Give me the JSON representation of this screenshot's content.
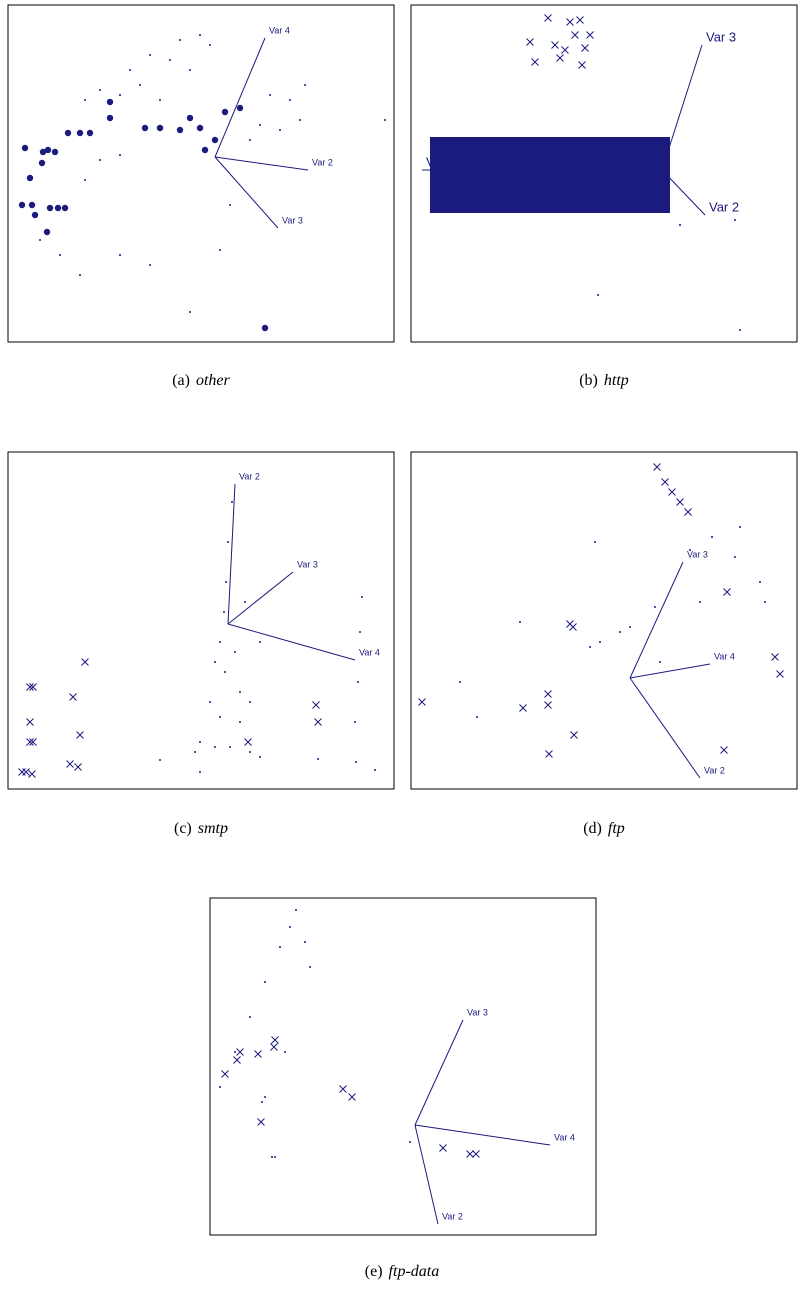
{
  "chart_data": [
    {
      "type": "scatter",
      "caption_label": "(a)",
      "caption_name": "other",
      "color": "#1b1b7e",
      "xlim": [
        0,
        386
      ],
      "ylim": [
        0,
        337
      ],
      "series": [
        {
          "marker": "large-dot",
          "x": [
            17,
            35,
            40,
            47,
            34,
            22,
            14,
            24,
            42,
            50,
            57,
            27,
            39,
            60,
            72,
            82,
            102,
            137,
            152,
            172,
            192,
            207,
            197,
            217,
            232,
            257,
            102,
            182
          ],
          "y": [
            194,
            190,
            192,
            190,
            179,
            164,
            137,
            137,
            134,
            134,
            134,
            127,
            110,
            209,
            209,
            209,
            224,
            214,
            214,
            212,
            214,
            202,
            192,
            230,
            234,
            14,
            240,
            224
          ]
        },
        {
          "marker": "dot",
          "x": [
            172,
            192,
            202,
            162,
            182,
            142,
            122,
            92,
            77,
            112,
            132,
            152,
            262,
            282,
            292,
            252,
            272,
            297,
            242,
            377,
            32,
            52,
            72,
            112,
            142,
            92,
            112,
            77,
            182,
            212,
            222
          ],
          "y": [
            302,
            307,
            297,
            282,
            272,
            287,
            272,
            252,
            242,
            247,
            257,
            242,
            247,
            242,
            222,
            217,
            212,
            257,
            202,
            222,
            102,
            87,
            67,
            87,
            77,
            182,
            187,
            162,
            30,
            92,
            137
          ]
        }
      ],
      "vectors": [
        {
          "label": "Var 4",
          "x": [
            207,
            257
          ],
          "y": [
            185,
            304
          ]
        },
        {
          "label": "Var 2",
          "x": [
            207,
            300
          ],
          "y": [
            185,
            172
          ]
        },
        {
          "label": "Var 3",
          "x": [
            207,
            270
          ],
          "y": [
            185,
            114
          ]
        }
      ]
    },
    {
      "type": "scatter",
      "caption_label": "(b)",
      "caption_name": "http",
      "color": "#1b1b7e",
      "xlim": [
        0,
        386
      ],
      "ylim": [
        0,
        337
      ],
      "series": [
        {
          "marker": "cross",
          "x": [
            137,
            159,
            169,
            119,
            144,
            164,
            179,
            154,
            174,
            124,
            149,
            171
          ],
          "y": [
            324,
            320,
            322,
            300,
            297,
            307,
            307,
            292,
            294,
            280,
            284,
            277
          ]
        },
        {
          "marker": "dense",
          "x": [
            29,
            49,
            69,
            89,
            109,
            129,
            149,
            169,
            189,
            209,
            229,
            249,
            29,
            49,
            69,
            89,
            109,
            129,
            149,
            169,
            189,
            209,
            229,
            249,
            29,
            49,
            69,
            89,
            109,
            129,
            149,
            169,
            189,
            209,
            229,
            249,
            29,
            49,
            69,
            89,
            109,
            129,
            149,
            169,
            189,
            209,
            229,
            249,
            29,
            49,
            69,
            89,
            109,
            129,
            149,
            169,
            189,
            209,
            229,
            249
          ],
          "y": [
            197,
            197,
            197,
            197,
            197,
            197,
            197,
            197,
            197,
            197,
            197,
            197,
            182,
            182,
            182,
            182,
            182,
            182,
            182,
            182,
            182,
            182,
            182,
            182,
            167,
            167,
            167,
            167,
            167,
            167,
            167,
            167,
            167,
            167,
            167,
            167,
            152,
            152,
            152,
            152,
            152,
            152,
            152,
            152,
            152,
            152,
            152,
            152,
            137,
            137,
            137,
            137,
            137,
            137,
            137,
            137,
            137,
            137,
            137,
            137
          ]
        },
        {
          "marker": "dot",
          "x": [
            187,
            329,
            324,
            269
          ],
          "y": [
            47,
            12,
            122,
            117
          ]
        }
      ],
      "vectors": [
        {
          "label": "Var 3",
          "x": [
            251,
            291
          ],
          "y": [
            172,
            297
          ]
        },
        {
          "label": "Var 2",
          "x": [
            251,
            294
          ],
          "y": [
            172,
            127
          ]
        },
        {
          "label": "Var 4",
          "x": [
            251,
            11
          ],
          "y": [
            172,
            172
          ]
        }
      ]
    },
    {
      "type": "scatter",
      "caption_label": "(c)",
      "caption_name": "smtp",
      "color": "#1b1b7e",
      "xlim": [
        0,
        386
      ],
      "ylim": [
        0,
        337
      ],
      "series": [
        {
          "marker": "cross",
          "x": [
            22,
            25,
            77,
            65,
            22,
            72,
            22,
            25,
            62,
            70,
            14,
            18,
            24,
            308,
            310,
            240
          ],
          "y": [
            102,
            102,
            127,
            92,
            67,
            54,
            47,
            47,
            25,
            22,
            17,
            17,
            15,
            84,
            67,
            47
          ]
        },
        {
          "marker": "dot",
          "x": [
            224,
            220,
            218,
            216,
            212,
            207,
            217,
            227,
            232,
            202,
            212,
            232,
            192,
            207,
            222,
            242,
            187,
            252,
            237,
            252,
            354,
            352,
            350,
            347,
            348,
            367,
            152,
            192,
            310,
            242
          ],
          "y": [
            287,
            247,
            207,
            177,
            147,
            127,
            117,
            137,
            97,
            87,
            72,
            67,
            47,
            42,
            42,
            37,
            37,
            32,
            187,
            147,
            192,
            157,
            107,
            67,
            27,
            19,
            29,
            17,
            30,
            87
          ]
        }
      ],
      "vectors": [
        {
          "label": "Var 2",
          "x": [
            220,
            227
          ],
          "y": [
            165,
            305
          ]
        },
        {
          "label": "Var 3",
          "x": [
            220,
            285
          ],
          "y": [
            165,
            217
          ]
        },
        {
          "label": "Var 4",
          "x": [
            220,
            347
          ],
          "y": [
            165,
            129
          ]
        }
      ]
    },
    {
      "type": "scatter",
      "caption_label": "(d)",
      "caption_name": "ftp",
      "color": "#1b1b7e",
      "xlim": [
        0,
        386
      ],
      "ylim": [
        0,
        337
      ],
      "series": [
        {
          "marker": "cross",
          "x": [
            246,
            254,
            261,
            269,
            277,
            159,
            162,
            364,
            369,
            313,
            11,
            112,
            137,
            137,
            163,
            138,
            316
          ],
          "y": [
            322,
            307,
            297,
            287,
            277,
            165,
            162,
            132,
            115,
            39,
            87,
            81,
            95,
            84,
            54,
            35,
            197
          ]
        },
        {
          "marker": "dot",
          "x": [
            329,
            301,
            279,
            219,
            209,
            189,
            179,
            244,
            324,
            354,
            109,
            184,
            49,
            66,
            349,
            289,
            249
          ],
          "y": [
            262,
            252,
            239,
            162,
            157,
            147,
            142,
            182,
            232,
            187,
            167,
            247,
            107,
            72,
            207,
            187,
            127
          ]
        }
      ],
      "vectors": [
        {
          "label": "Var 3",
          "x": [
            219,
            272
          ],
          "y": [
            111,
            227
          ]
        },
        {
          "label": "Var 4",
          "x": [
            219,
            299
          ],
          "y": [
            111,
            125
          ]
        },
        {
          "label": "Var 2",
          "x": [
            219,
            289
          ],
          "y": [
            111,
            11
          ]
        }
      ]
    },
    {
      "type": "scatter",
      "caption_label": "(e)",
      "caption_name": "ftp-data",
      "color": "#1b1b7e",
      "xlim": [
        0,
        386
      ],
      "ylim": [
        0,
        337
      ],
      "series": [
        {
          "marker": "cross",
          "x": [
            15,
            27,
            30,
            48,
            64,
            65,
            133,
            142,
            51,
            233,
            260,
            266
          ],
          "y": [
            161,
            175,
            183,
            181,
            188,
            195,
            146,
            138,
            113,
            87,
            81,
            81
          ]
        },
        {
          "marker": "dot",
          "x": [
            10,
            25,
            40,
            55,
            70,
            80,
            86,
            95,
            100,
            55,
            62,
            65,
            200,
            75,
            52
          ],
          "y": [
            148,
            183,
            218,
            253,
            288,
            308,
            325,
            293,
            268,
            138,
            78,
            78,
            93,
            183,
            133
          ]
        }
      ],
      "vectors": [
        {
          "label": "Var 3",
          "x": [
            205,
            253
          ],
          "y": [
            110,
            215
          ]
        },
        {
          "label": "Var 4",
          "x": [
            205,
            340
          ],
          "y": [
            110,
            90
          ]
        },
        {
          "label": "Var 2",
          "x": [
            205,
            228
          ],
          "y": [
            110,
            11
          ]
        }
      ]
    }
  ]
}
